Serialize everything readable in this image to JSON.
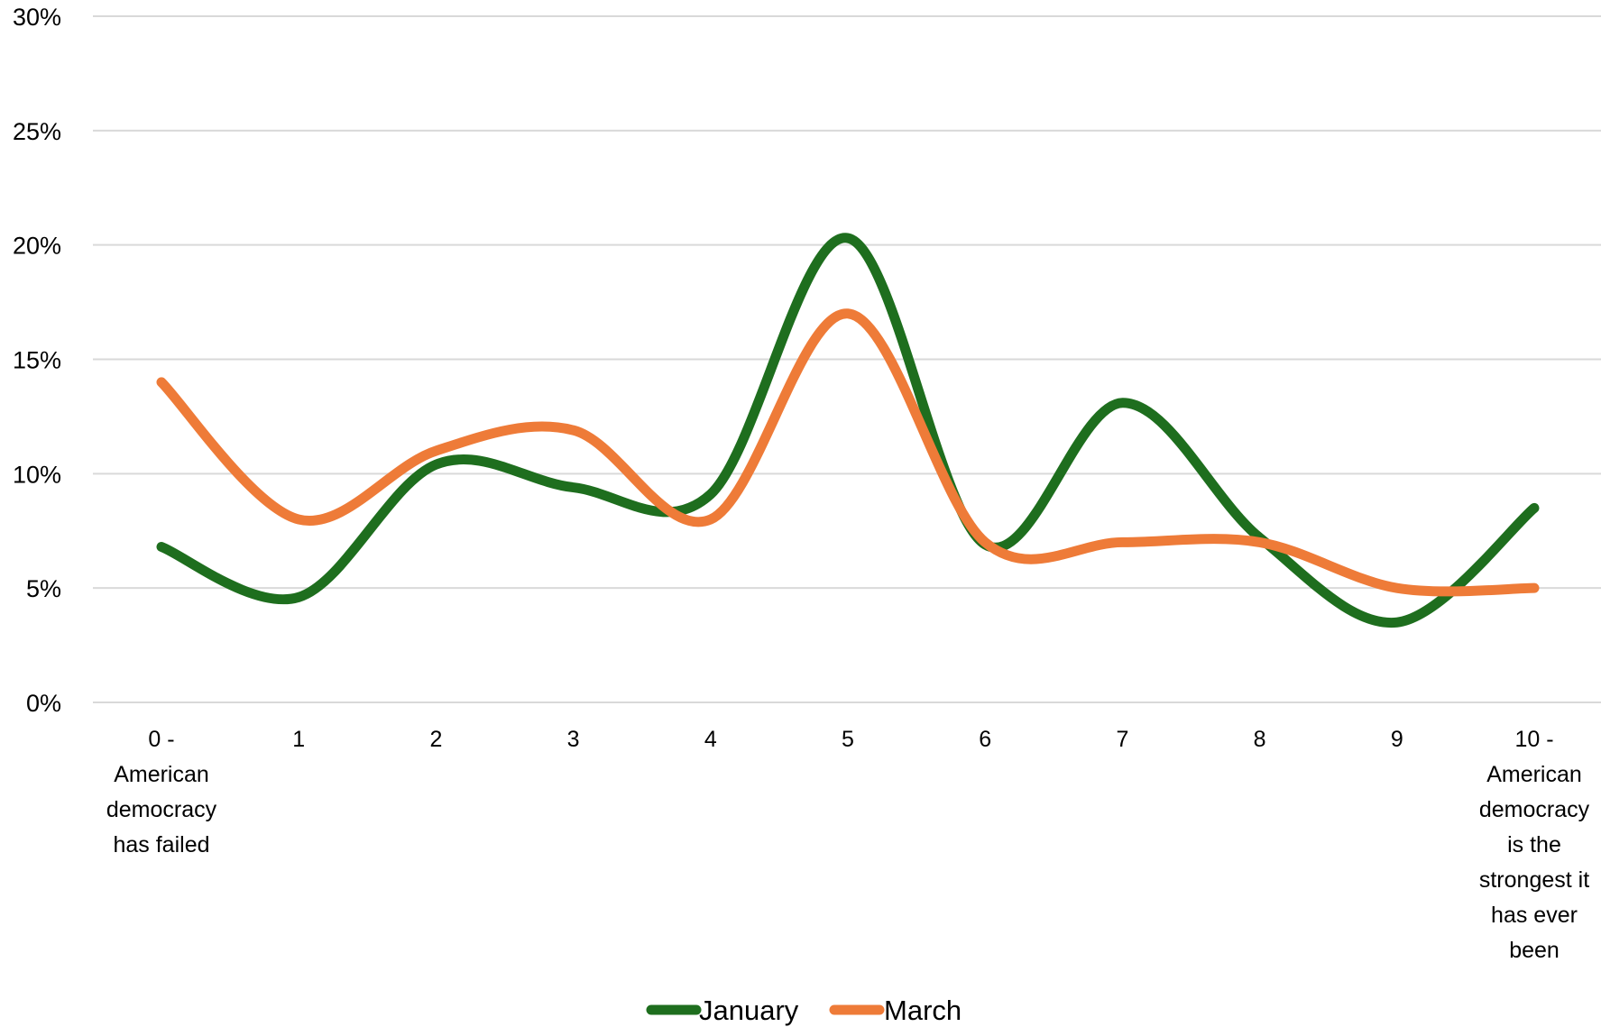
{
  "chart_data": {
    "type": "line",
    "smooth": true,
    "categories": [
      [
        "0 -",
        "American",
        "democracy",
        "has failed"
      ],
      [
        "1"
      ],
      [
        "2"
      ],
      [
        "3"
      ],
      [
        "4"
      ],
      [
        "5"
      ],
      [
        "6"
      ],
      [
        "7"
      ],
      [
        "8"
      ],
      [
        "9"
      ],
      [
        "10 -",
        "American",
        "democracy",
        "is the",
        "strongest it",
        "has ever",
        "been"
      ]
    ],
    "series": [
      {
        "name": "January",
        "color": "#1e6e1e",
        "values": [
          6.8,
          4.6,
          10.4,
          9.4,
          9.1,
          20.3,
          6.9,
          13.1,
          7.2,
          3.5,
          8.5
        ]
      },
      {
        "name": "March",
        "color": "#ee7b38",
        "values": [
          14.0,
          8.0,
          11.0,
          11.9,
          8.0,
          17.0,
          7.0,
          7.0,
          7.0,
          5.0,
          5.0
        ]
      }
    ],
    "y_ticks": [
      "0%",
      "5%",
      "10%",
      "15%",
      "20%",
      "25%",
      "30%"
    ],
    "ylim": [
      0,
      30
    ],
    "grid": "horizontal",
    "grid_color": "#d9d9d9",
    "legend": "bottom-center",
    "title": "",
    "xlabel": "",
    "ylabel": ""
  }
}
